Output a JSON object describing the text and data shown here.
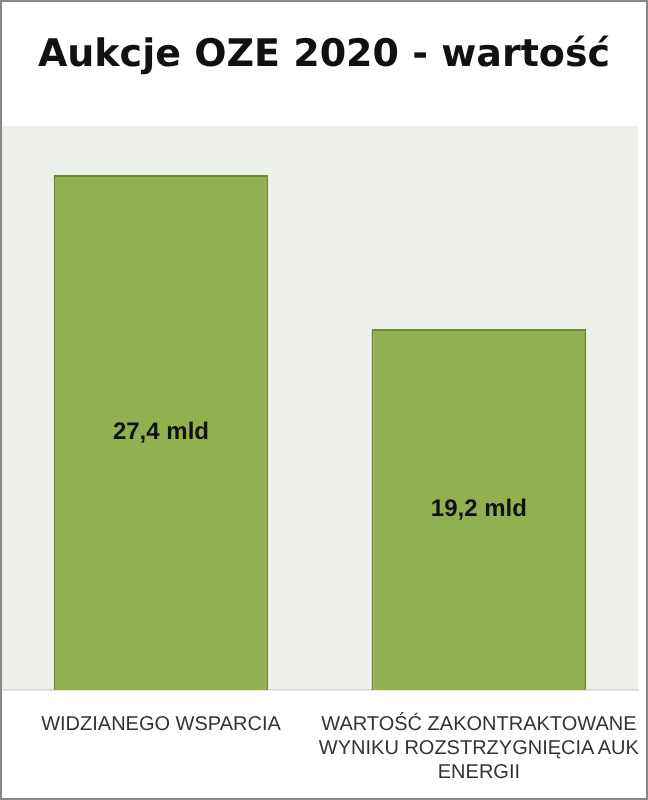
{
  "chart_data": {
    "type": "bar",
    "title": "Aukcje OZE 2020 - wartość",
    "categories": [
      "WIDZIANEGO WSPARCIA",
      "WARTOŚĆ ZAKONTRAKTOWANE\nWYNIKU ROZSTRZYGNIĘCIA AUK\nENERGII"
    ],
    "values": [
      27.4,
      19.2
    ],
    "color": "#92b050",
    "value_labels": [
      "27,4 mld",
      "19,2 mld"
    ]
  }
}
